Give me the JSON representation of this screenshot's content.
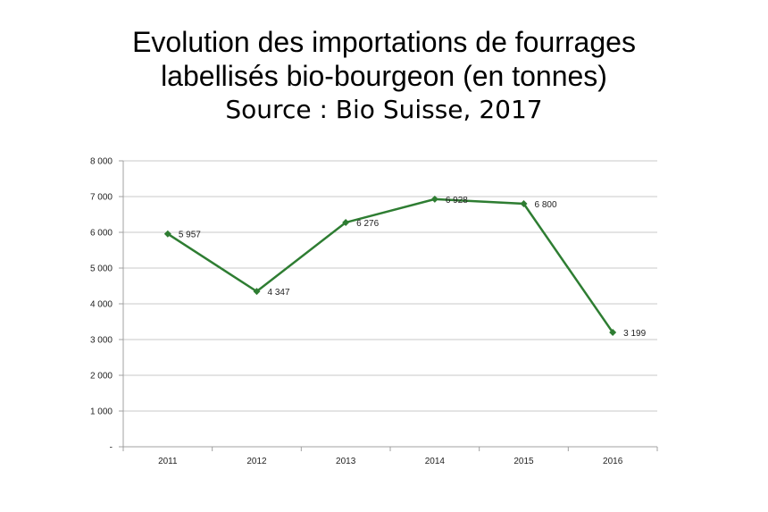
{
  "title": {
    "line1": "Evolution des importations de fourrages",
    "line2": "labellisés bio-bourgeon (en tonnes)",
    "source": "Source : Bio Suisse, 2017"
  },
  "colors": {
    "series": "#2e7d32",
    "grid": "#c8c8c8",
    "axis": "#a0a0a0",
    "text": "#222222"
  },
  "chart_data": {
    "type": "line",
    "title": "Evolution des importations de fourrages labellisés bio-bourgeon (en tonnes)",
    "xlabel": "",
    "ylabel": "",
    "categories": [
      "2011",
      "2012",
      "2013",
      "2014",
      "2015",
      "2016"
    ],
    "values": [
      5957,
      4347,
      6276,
      6928,
      6800,
      3199
    ],
    "data_labels": [
      "5 957",
      "4 347",
      "6 276",
      "6 928",
      "6 800",
      "3 199"
    ],
    "ylim": [
      0,
      8000
    ],
    "yticks": [
      0,
      1000,
      2000,
      3000,
      4000,
      5000,
      6000,
      7000,
      8000
    ],
    "ytick_labels": [
      "-",
      "1 000",
      "2 000",
      "3 000",
      "4 000",
      "5 000",
      "6 000",
      "7 000",
      "8 000"
    ],
    "grid": true,
    "legend": "none",
    "marker": "diamond"
  }
}
